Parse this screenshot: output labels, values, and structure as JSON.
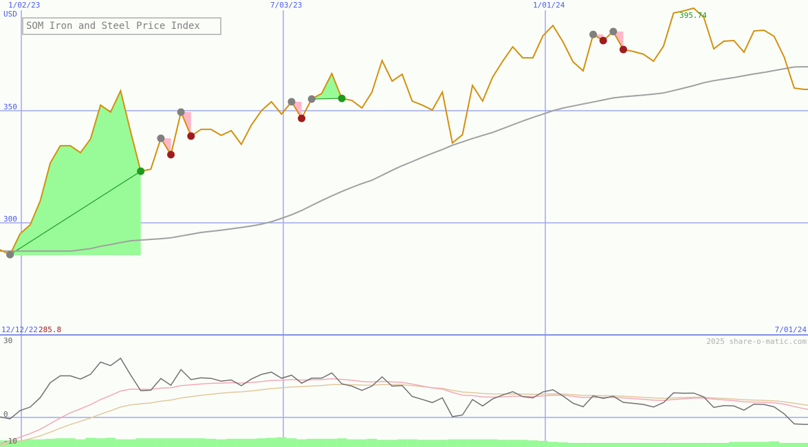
{
  "chart_data": [
    {
      "type": "line",
      "title": "SOM Iron and Steel Price Index",
      "ylabel": "USD",
      "ylim": [
        260,
        400
      ],
      "x_tick_labels": [
        "1/02/23",
        "7/03/23",
        "1/01/24"
      ],
      "y_tick_labels": [
        "350",
        "300"
      ],
      "range_start_label": "12/12/22",
      "range_end_label": "7/01/24",
      "low_value_label": "285.8",
      "high_value_label": "395.74",
      "grid": true,
      "series": [
        {
          "key": "price",
          "color": "#d4900a",
          "values": [
            288.0,
            285.8,
            295.1,
            299.1,
            309.8,
            326.7,
            334.4,
            334.4,
            331.3,
            337.4,
            352.5,
            349.4,
            358.9,
            340.5,
            323.0,
            323.9,
            337.7,
            330.4,
            349.4,
            338.7,
            341.7,
            341.7,
            339.0,
            341.1,
            335.0,
            343.6,
            350.0,
            354.0,
            348.5,
            354.0,
            346.6,
            355.2,
            357.7,
            366.6,
            355.5,
            354.6,
            351.2,
            358.3,
            372.4,
            363.2,
            366.3,
            354.3,
            352.5,
            350.3,
            358.3,
            335.6,
            339.3,
            361.3,
            354.3,
            365.0,
            372.1,
            378.5,
            373.6,
            373.6,
            383.4,
            388.0,
            380.7,
            371.8,
            367.8,
            384.0,
            381.3,
            385.3,
            377.3,
            376.4,
            375.2,
            372.1,
            378.8,
            393.6,
            394.5,
            395.74,
            391.7,
            377.6,
            381.0,
            381.3,
            376.1,
            385.6,
            385.9,
            383.2,
            373.9,
            360.1,
            359.5,
            359.5
          ]
        },
        {
          "key": "moving_average",
          "color": "#a0a0a0",
          "values": [
            287.4,
            287.4,
            287.4,
            287.4,
            287.4,
            287.4,
            287.4,
            287.4,
            287.9,
            288.5,
            289.5,
            290.3,
            291.2,
            292.0,
            292.3,
            292.6,
            292.9,
            293.3,
            294.1,
            294.9,
            295.7,
            296.2,
            296.7,
            297.3,
            297.9,
            298.6,
            299.4,
            300.5,
            302.0,
            303.6,
            305.5,
            307.7,
            309.9,
            312.0,
            314.0,
            315.8,
            317.5,
            319.0,
            321.2,
            323.4,
            325.5,
            327.3,
            329.2,
            331.0,
            332.7,
            334.6,
            336.1,
            337.6,
            339.0,
            340.3,
            342.0,
            343.7,
            345.4,
            347.0,
            348.5,
            350.0,
            351.2,
            352.1,
            353.0,
            353.9,
            354.8,
            355.7,
            356.2,
            356.6,
            357.0,
            357.4,
            357.9,
            359.0,
            360.1,
            361.2,
            362.5,
            363.4,
            364.1,
            364.8,
            365.6,
            366.4,
            367.1,
            367.9,
            368.7,
            369.5,
            369.6,
            369.6
          ]
        }
      ],
      "signals": [
        {
          "type": "buy",
          "from": 1,
          "to": 14
        },
        {
          "type": "sell",
          "from": 16,
          "to": 17
        },
        {
          "type": "sell",
          "from": 18,
          "to": 19
        },
        {
          "type": "sell",
          "from": 29,
          "to": 30
        },
        {
          "type": "buy",
          "from": 31,
          "to": 34
        },
        {
          "type": "sell",
          "from": 59,
          "to": 60
        },
        {
          "type": "sell",
          "from": 61,
          "to": 62
        }
      ],
      "colors": {
        "buy": "#98fb98",
        "buy_marker": "#1e9a1e",
        "sell": "#ffb6c8",
        "sell_marker": "#a01c1c",
        "start_marker": "#808080",
        "grid": "#a0a8f0",
        "axis_text": "#4a5af0"
      }
    },
    {
      "type": "line",
      "ylim": [
        -10,
        30
      ],
      "y_tick_labels": [
        "30",
        "0",
        "-10"
      ],
      "watermark": "2025 share-o-matic.com",
      "series": [
        {
          "key": "oscillator",
          "color": "#707070"
        },
        {
          "key": "fast_signal",
          "color": "#f4a8b8"
        },
        {
          "key": "slow_signal",
          "color": "#e2c89a"
        }
      ],
      "volume_bars": {
        "color": "#98fb98",
        "values": [
          -9,
          -9,
          -9,
          -8.6,
          -8.6,
          -8.4,
          -8.2,
          -8.2,
          -8.6,
          -8.0,
          -8.2,
          -8.0,
          -8.6,
          -8.6,
          -8.2,
          -8.2,
          -8.2,
          -8.2,
          -8.2,
          -8.2,
          -8.2,
          -8.4,
          -8.6,
          -8.4,
          -8.4,
          -8.4,
          -8.2,
          -8.0,
          -7.8,
          -8.2,
          -8.6,
          -8.4,
          -8.4,
          -8.4,
          -8.2,
          -8.6,
          -8.6,
          -8.4,
          -8.8,
          -8.8,
          -8.6,
          -8.6,
          -8.8,
          -8.8,
          -8.8,
          -8.6,
          -8.6,
          -8.6,
          -8.6,
          -8.6,
          -8.8,
          -8.8,
          -8.8,
          -9.0,
          -9.2,
          -9.6,
          -9.8,
          -10,
          -10,
          -10,
          -10,
          -10,
          -10,
          -10,
          -10,
          -10,
          -10,
          -10,
          -10,
          -10,
          -10,
          -10,
          -10,
          -9.6,
          -9.6,
          -9.6,
          -9.6,
          -9.4,
          -10,
          -10,
          -10,
          -10
        ]
      }
    }
  ]
}
